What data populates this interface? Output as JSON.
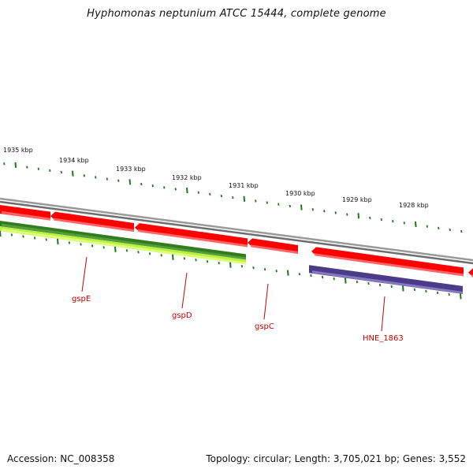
{
  "title": "Hyphomonas neptunium ATCC 15444, complete genome",
  "footer": {
    "accession": "Accession: NC_008358",
    "summary": "Topology: circular; Length: 3,705,021 bp; Genes: 3,552"
  },
  "colors": {
    "backbone": "#8a8a8a",
    "gene_red": "#ff0000",
    "gene_red_light": "#ff7070",
    "cds_dark_green": "#2f7d1f",
    "cds_light_green": "#b8f040",
    "misc_purple": "#4b3b8a",
    "misc_purple_light": "#8e80c8",
    "tick_green": "#1a7a1a",
    "label_red": "#cc0000"
  },
  "scale_labels": [
    {
      "text": "1935 kbp",
      "pos": 1935
    },
    {
      "text": "1934 kbp",
      "pos": 1934
    },
    {
      "text": "1933 kbp",
      "pos": 1933
    },
    {
      "text": "1932 kbp",
      "pos": 1932
    },
    {
      "text": "1931 kbp",
      "pos": 1931
    },
    {
      "text": "1930 kbp",
      "pos": 1930
    },
    {
      "text": "1929 kbp",
      "pos": 1929
    },
    {
      "text": "1928 kbp",
      "pos": 1928
    }
  ],
  "gene_labels": [
    "gspE",
    "gspD",
    "gspC",
    "HNE_1863"
  ]
}
